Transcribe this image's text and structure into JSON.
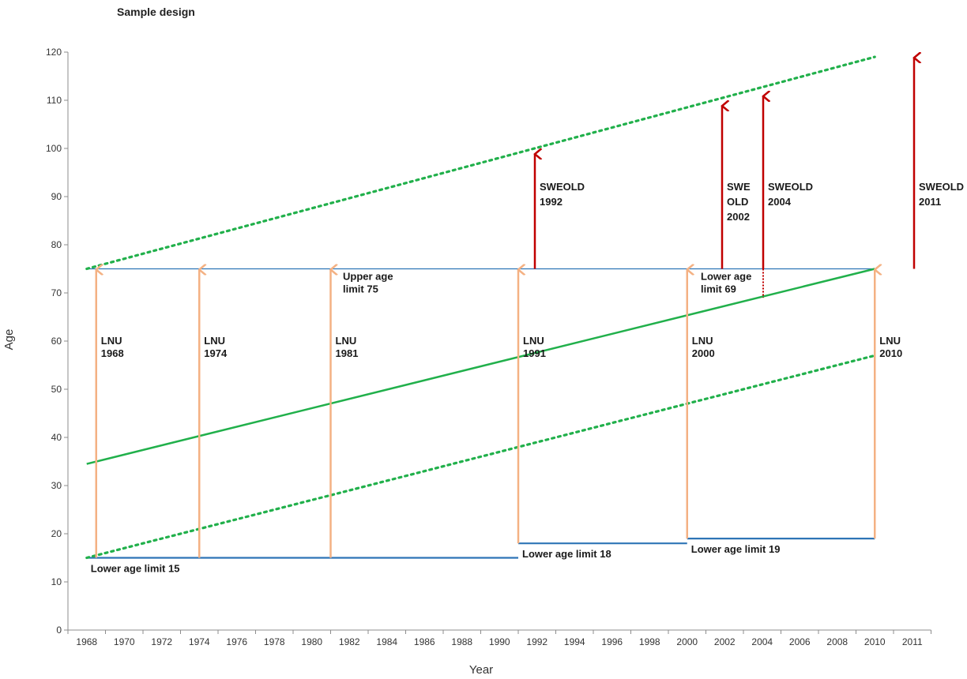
{
  "chart_data": {
    "type": "line",
    "title": "Sample design",
    "xlabel": "Year",
    "ylabel": "Age",
    "ylim": [
      0,
      120
    ],
    "yticks": [
      0,
      10,
      20,
      30,
      40,
      50,
      60,
      70,
      80,
      90,
      100,
      110,
      120
    ],
    "categories": [
      "1968",
      "1970",
      "1972",
      "1974",
      "1976",
      "1978",
      "1980",
      "1982",
      "1984",
      "1986",
      "1988",
      "1990",
      "1992",
      "1994",
      "1996",
      "1998",
      "2000",
      "2002",
      "2004",
      "2006",
      "2008",
      "2010",
      "2011"
    ],
    "grid": false,
    "legend": "none",
    "colors": {
      "axis": "#8c8c8c",
      "limit_line": "#2e75b6",
      "cohort_line": "#21b04b",
      "lnu_arrow": "#f4b183",
      "sweold_arrow": "#c00000"
    },
    "lines": [
      {
        "style": "dotted",
        "points": [
          [
            1968,
            15
          ],
          [
            2010,
            57
          ]
        ]
      },
      {
        "style": "solid",
        "points": [
          [
            1968,
            34.5
          ],
          [
            2011,
            75
          ]
        ]
      },
      {
        "style": "dotted",
        "points": [
          [
            1968,
            75
          ],
          [
            2011,
            119
          ]
        ]
      }
    ],
    "limit_segments": [
      {
        "label": "Upper age limit 75",
        "x": [
          1968,
          2011
        ],
        "y": 75
      },
      {
        "label": "Lower age limit 15",
        "x": [
          1968,
          1991
        ],
        "y": 15
      },
      {
        "label": "Lower age limit 18",
        "x": [
          1991,
          2000
        ],
        "y": 18
      },
      {
        "label": "Lower age limit 19",
        "x": [
          2000,
          2010
        ],
        "y": 19
      }
    ],
    "lnu_surveys": [
      {
        "label": [
          "LNU",
          "1968"
        ],
        "year": 1968,
        "from": 15,
        "to": 75
      },
      {
        "label": [
          "LNU",
          "1974"
        ],
        "year": 1974,
        "from": 15,
        "to": 75
      },
      {
        "label": [
          "LNU",
          "1981"
        ],
        "year": 1981,
        "from": 15,
        "to": 75
      },
      {
        "label": [
          "LNU",
          "1991"
        ],
        "year": 1991,
        "from": 18,
        "to": 75
      },
      {
        "label": [
          "LNU",
          "2000"
        ],
        "year": 2000,
        "from": 19,
        "to": 75
      },
      {
        "label": [
          "LNU",
          "2010"
        ],
        "year": 2010,
        "from": 19,
        "to": 75
      }
    ],
    "sweold_surveys": [
      {
        "label": [
          "SWEOLD",
          "1992"
        ],
        "year": 1992,
        "from": 75,
        "to": 99
      },
      {
        "label": [
          "SWE",
          "OLD",
          "2002"
        ],
        "year": 2002,
        "from": 75,
        "to": 109
      },
      {
        "label": [
          "SWEOLD",
          "2004"
        ],
        "year": 2004,
        "from": 75,
        "to": 111,
        "dotted_below_to": 69
      },
      {
        "label": [
          "SWEOLD",
          "2011"
        ],
        "year": 2011,
        "from": 75,
        "to": 119
      }
    ],
    "annotations": [
      {
        "text": [
          "Lower age",
          "limit 69"
        ],
        "year": 2000,
        "age": 75
      }
    ]
  }
}
